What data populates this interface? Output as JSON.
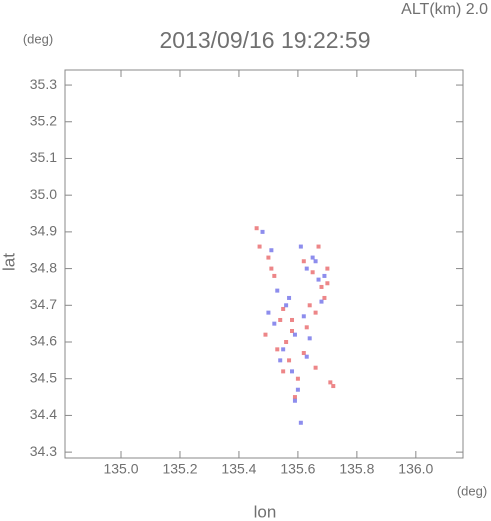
{
  "chart_data": {
    "type": "scatter",
    "title": "ALT(km) 2.0",
    "subtitle": "2013/09/16 19:22:59",
    "y_unit": "(deg)",
    "x_unit": "(deg)",
    "ylabel": "lat",
    "xlabel": "lon",
    "xlim": [
      134.81,
      136.16
    ],
    "ylim": [
      34.284,
      35.341
    ],
    "xticks": [
      {
        "value": 135.0,
        "label": "135.0"
      },
      135.2,
      135.4,
      135.6,
      135.8,
      {
        "value": 136.0,
        "label": "136.0"
      }
    ],
    "yticks": [
      34.3,
      34.4,
      34.5,
      34.6,
      34.7,
      34.8,
      34.9,
      {
        "value": 35.0,
        "label": "35.0"
      },
      35.1,
      35.2,
      35.3
    ],
    "series": [
      {
        "color": "#e8686a",
        "x": [
          135.46,
          135.5,
          135.52,
          135.55,
          135.58,
          135.62,
          135.65,
          135.68,
          135.7,
          135.72,
          135.49,
          135.53,
          135.57,
          135.6,
          135.63,
          135.66,
          135.69,
          135.47,
          135.51,
          135.56,
          135.59,
          135.64,
          135.67,
          135.71,
          135.54,
          135.58,
          135.62,
          135.66,
          135.7,
          135.55
        ],
        "y": [
          34.91,
          34.83,
          34.78,
          34.69,
          34.66,
          34.82,
          34.79,
          34.75,
          34.8,
          34.48,
          34.62,
          34.58,
          34.55,
          34.5,
          34.64,
          34.68,
          34.72,
          34.86,
          34.8,
          34.6,
          34.45,
          34.7,
          34.86,
          34.49,
          34.66,
          34.63,
          34.57,
          34.53,
          34.76,
          34.52
        ]
      },
      {
        "color": "#7070e8",
        "x": [
          135.48,
          135.51,
          135.53,
          135.56,
          135.59,
          135.61,
          135.63,
          135.65,
          135.67,
          135.69,
          135.52,
          135.55,
          135.58,
          135.6,
          135.62,
          135.64,
          135.57,
          135.54,
          135.61,
          135.66,
          135.5,
          135.68,
          135.59,
          135.63
        ],
        "y": [
          34.9,
          34.85,
          34.74,
          34.7,
          34.62,
          34.86,
          34.8,
          34.83,
          34.77,
          34.78,
          34.65,
          34.58,
          34.52,
          34.47,
          34.67,
          34.61,
          34.72,
          34.55,
          34.38,
          34.82,
          34.68,
          34.71,
          34.44,
          34.56
        ]
      }
    ]
  }
}
